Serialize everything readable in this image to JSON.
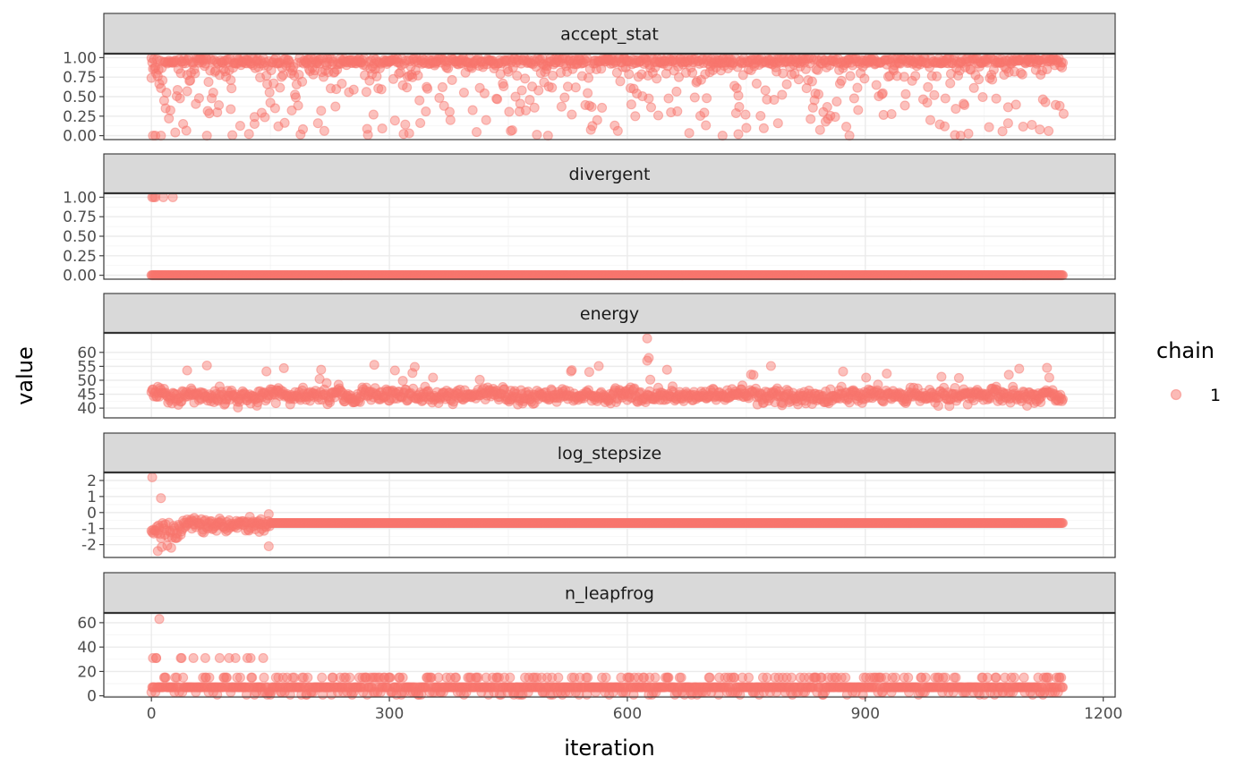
{
  "chart_data": {
    "type": "scatter",
    "facet_by": "parameter",
    "xlabel": "iteration",
    "ylabel": "value",
    "xlim": [
      -60,
      1215
    ],
    "x_ticks": [
      0,
      300,
      600,
      900,
      1200
    ],
    "x_tick_labels": [
      "0",
      "300",
      "600",
      "900",
      "1200"
    ],
    "n_iterations": 1150,
    "point_color": "#F8766D",
    "point_alpha": 0.5,
    "legend": {
      "title": "chain",
      "labels": [
        "1"
      ],
      "placement": "right"
    },
    "facets": [
      {
        "name": "accept_stat",
        "ylim": [
          -0.05,
          1.05
        ],
        "y_ticks": [
          0,
          0.25,
          0.5,
          0.75,
          1
        ],
        "y_tick_labels": [
          "0.00",
          "0.25",
          "0.50",
          "0.75",
          "1.00"
        ],
        "description": "mostly near 1.0 with scattered lower values down to 0",
        "sample_points": [
          [
            0,
            0.74
          ],
          [
            2,
            0.0
          ],
          [
            5,
            0.0
          ],
          [
            12,
            0.0
          ],
          [
            18,
            0.35
          ],
          [
            22,
            0.22
          ],
          [
            30,
            0.04
          ],
          [
            40,
            0.15
          ],
          [
            45,
            0.57
          ],
          [
            60,
            0.48
          ],
          [
            70,
            0.0
          ],
          [
            100,
            0.34
          ],
          [
            130,
            0.15
          ],
          [
            160,
            0.12
          ],
          [
            210,
            0.16
          ],
          [
            280,
            0.27
          ],
          [
            325,
            0.03
          ],
          [
            455,
            0.07
          ],
          [
            500,
            0.0
          ],
          [
            610,
            0.25
          ],
          [
            700,
            0.48
          ],
          [
            720,
            0.0
          ],
          [
            740,
            0.02
          ],
          [
            790,
            0.16
          ],
          [
            850,
            0.18
          ],
          [
            880,
            0.0
          ],
          [
            1000,
            0.12
          ],
          [
            1020,
            0.0
          ],
          [
            1080,
            0.16
          ],
          [
            1120,
            0.08
          ],
          [
            1150,
            0.28
          ]
        ]
      },
      {
        "name": "divergent",
        "ylim": [
          -0.05,
          1.05
        ],
        "y_ticks": [
          0,
          0.25,
          0.5,
          0.75,
          1
        ],
        "y_tick_labels": [
          "0.00",
          "0.25",
          "0.50",
          "0.75",
          "1.00"
        ],
        "description": "0 for all iterations except a few early divergent transitions",
        "ones_at": [
          1,
          3,
          5,
          15,
          27
        ],
        "baseline": 0
      },
      {
        "name": "energy",
        "ylim": [
          36.5,
          67
        ],
        "y_ticks": [
          40,
          45,
          50,
          55,
          60
        ],
        "y_tick_labels": [
          "40",
          "45",
          "50",
          "55",
          "60"
        ],
        "description": "fluctuates mostly between 38 and 52, spike near 65 around iteration 625",
        "mean": 44.5,
        "peak": [
          625,
          65
        ]
      },
      {
        "name": "log_stepsize",
        "ylim": [
          -2.8,
          2.5
        ],
        "y_ticks": [
          -2,
          -1,
          0,
          1,
          2
        ],
        "y_tick_labels": [
          "-2",
          "-1",
          "0",
          "1",
          "2"
        ],
        "description": "adaptation phase scatter for first ~150 iterations, then constant near -0.65",
        "warmup_end": 150,
        "constant_value": -0.65
      },
      {
        "name": "n_leapfrog",
        "ylim": [
          -1,
          68
        ],
        "y_ticks": [
          0,
          20,
          40,
          60
        ],
        "y_tick_labels": [
          "0",
          "20",
          "40",
          "60"
        ],
        "description": "mostly 7, with frequent 15, occasional 3, and early 31 / 63",
        "levels": [
          1,
          3,
          7,
          15,
          31,
          63
        ]
      }
    ]
  }
}
